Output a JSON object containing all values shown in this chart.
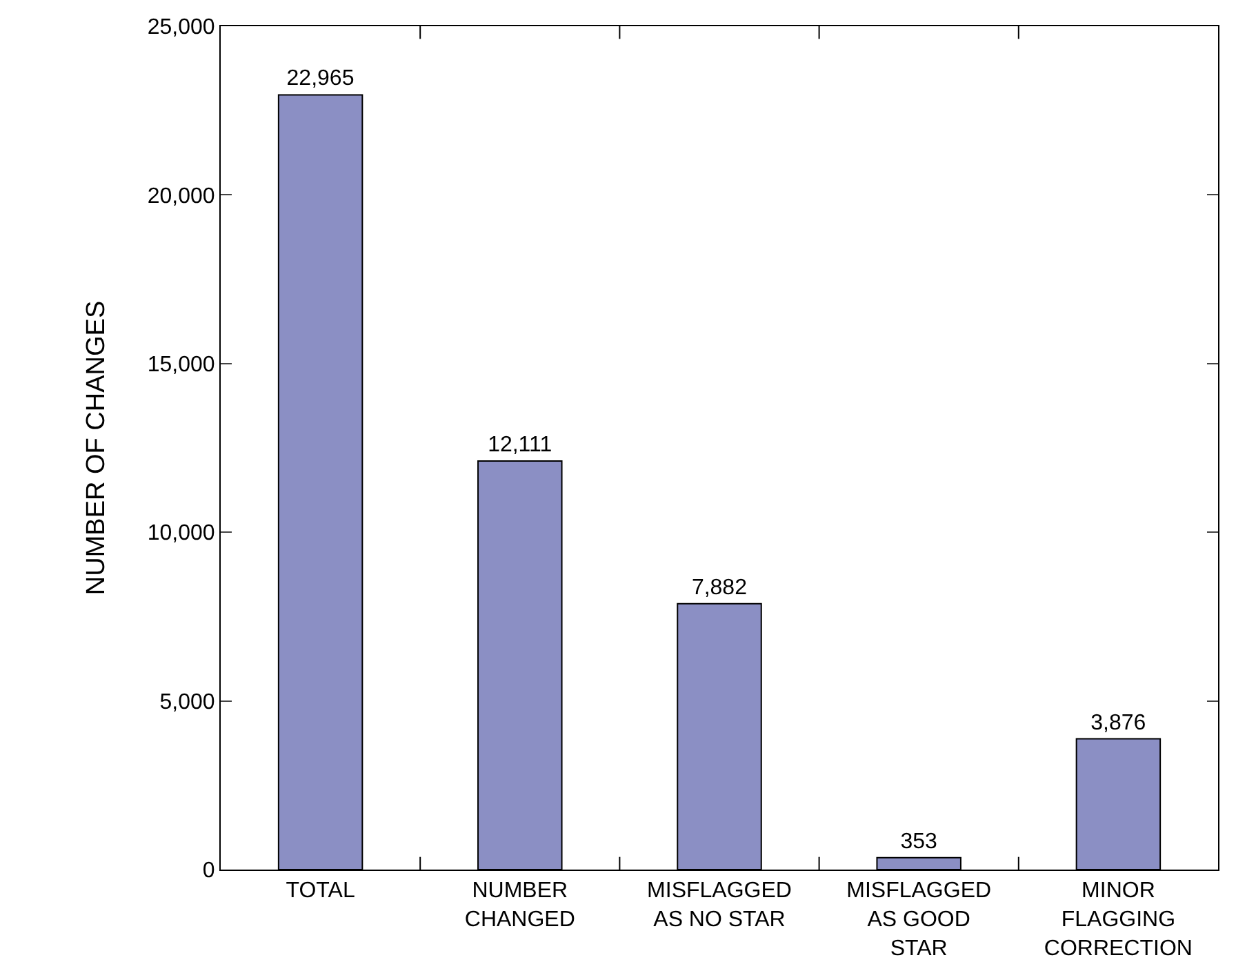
{
  "chart_data": {
    "type": "bar",
    "ylabel": "NUMBER OF CHANGES",
    "categories": [
      "TOTAL",
      "NUMBER\nCHANGED",
      "MISFLAGGED\nAS NO STAR",
      "MISFLAGGED\nAS GOOD\nSTAR",
      "MINOR\nFLAGGING\nCORRECTION"
    ],
    "values": [
      22965,
      12111,
      7882,
      353,
      3876
    ],
    "color": "#8b8fc4",
    "ylim": [
      0,
      25000
    ],
    "yticks": [
      {
        "value": 0,
        "label": "0"
      },
      {
        "value": 5000,
        "label": "5,000"
      },
      {
        "value": 10000,
        "label": "10,000"
      },
      {
        "value": 15000,
        "label": "15,000"
      },
      {
        "value": 20000,
        "label": "20,000"
      },
      {
        "value": 25000,
        "label": "25,000"
      }
    ],
    "value_labels": [
      "22,965",
      "12,111",
      "7,882",
      "353",
      "3,876"
    ]
  }
}
